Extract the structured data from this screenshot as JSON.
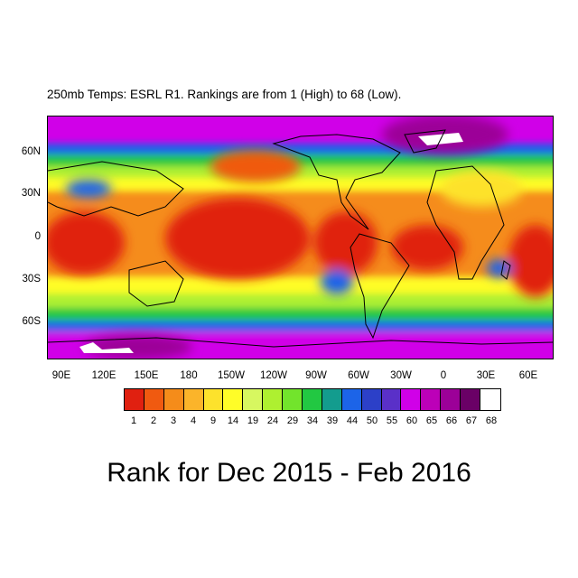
{
  "plot_title": "250mb Temps: ESRL R1. Rankings are from 1 (High) to 68 (Low).",
  "main_title": "Rank for Dec 2015 - Feb 2016",
  "map": {
    "latitude_labels": [
      "60N",
      "30N",
      "0",
      "30S",
      "60S"
    ],
    "longitude_labels": [
      "90E",
      "120E",
      "150E",
      "180",
      "150W",
      "120W",
      "90W",
      "60W",
      "30W",
      "0",
      "30E",
      "60E"
    ]
  },
  "colorbar": {
    "labels": [
      "1",
      "2",
      "3",
      "4",
      "9",
      "14",
      "19",
      "24",
      "29",
      "34",
      "39",
      "44",
      "50",
      "55",
      "60",
      "65",
      "66",
      "67",
      "68"
    ],
    "colors": [
      "#e02010",
      "#f05a10",
      "#f58c1a",
      "#fbb42a",
      "#fde22c",
      "#fffd28",
      "#d7f760",
      "#aef030",
      "#72e42c",
      "#22c842",
      "#139c8e",
      "#1c64e8",
      "#2c40c8",
      "#5a30c8",
      "#d000e8",
      "#bc00b8",
      "#9c0098",
      "#6a0066",
      "#ffffff"
    ]
  }
}
